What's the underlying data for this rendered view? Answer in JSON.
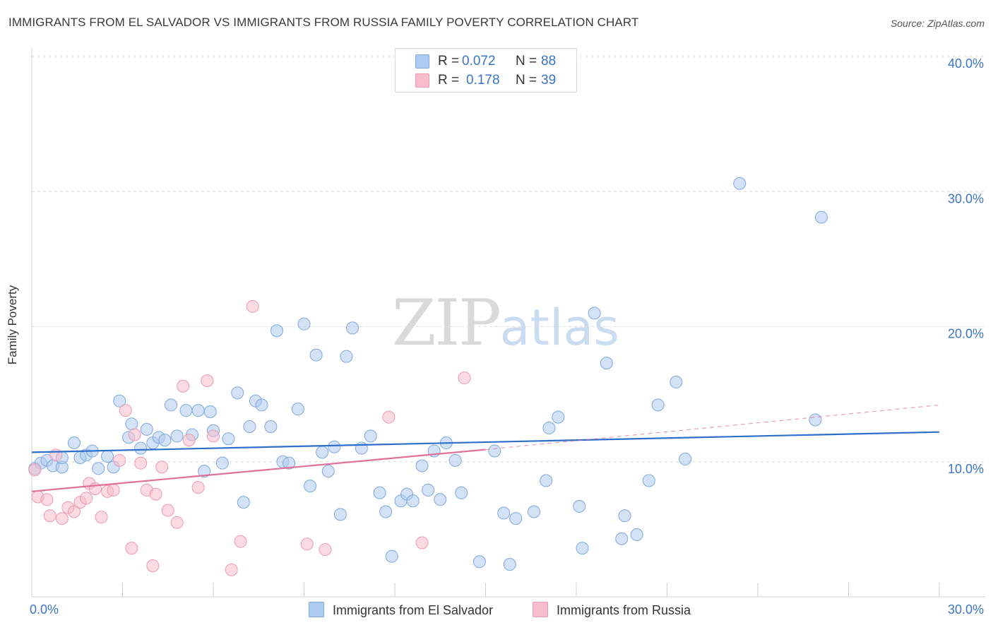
{
  "title": "IMMIGRANTS FROM EL SALVADOR VS IMMIGRANTS FROM RUSSIA FAMILY POVERTY CORRELATION CHART",
  "source": "Source: ZipAtlas.com",
  "watermark": {
    "zip": "ZIP",
    "atlas": "atlas"
  },
  "colors": {
    "blue_fill": "#aecbf0",
    "blue_stroke": "#7ea8dc",
    "blue_line": "#2e6fc9",
    "pink_fill": "#f7bccd",
    "pink_stroke": "#ec9ab4",
    "pink_line": "#e0709a",
    "axis_label": "#3a75c4",
    "grid": "#dcdcdc"
  },
  "legend_top": [
    {
      "r_label": "R =",
      "r_value": "0.072",
      "n_label": "N =",
      "n_value": "88"
    },
    {
      "r_label": "R =",
      "r_value": "0.178",
      "n_label": "N =",
      "n_value": "39"
    }
  ],
  "legend_bottom": [
    {
      "label": "Immigrants from El Salvador"
    },
    {
      "label": "Immigrants from Russia"
    }
  ],
  "chart_data": {
    "type": "scatter",
    "xlabel": "",
    "ylabel": "Family Poverty",
    "xlim": [
      0,
      30
    ],
    "ylim": [
      0,
      40
    ],
    "x_tick_labels": [
      "0.0%",
      "30.0%"
    ],
    "y_tick_labels": [
      "10.0%",
      "20.0%",
      "30.0%",
      "40.0%"
    ],
    "y_ticks": [
      10,
      20,
      30,
      40
    ],
    "grid": true,
    "legend_placement": "top-center",
    "series": [
      {
        "name": "Immigrants from El Salvador",
        "r": 0.072,
        "n": 88,
        "trend": {
          "x": [
            0,
            30
          ],
          "y": [
            10.7,
            12.2
          ],
          "style": "solid"
        },
        "points": [
          [
            0.1,
            9.5
          ],
          [
            0.3,
            9.9
          ],
          [
            0.5,
            10.1
          ],
          [
            0.7,
            9.7
          ],
          [
            1.0,
            9.6
          ],
          [
            1.0,
            10.3
          ],
          [
            1.4,
            11.4
          ],
          [
            1.6,
            10.3
          ],
          [
            1.8,
            10.5
          ],
          [
            2.0,
            10.8
          ],
          [
            2.2,
            9.5
          ],
          [
            2.5,
            10.4
          ],
          [
            2.7,
            9.6
          ],
          [
            2.9,
            14.5
          ],
          [
            3.2,
            11.8
          ],
          [
            3.3,
            12.8
          ],
          [
            3.6,
            11.0
          ],
          [
            3.8,
            12.4
          ],
          [
            4.0,
            11.4
          ],
          [
            4.2,
            11.8
          ],
          [
            4.4,
            11.6
          ],
          [
            4.6,
            14.2
          ],
          [
            4.8,
            11.9
          ],
          [
            5.1,
            13.8
          ],
          [
            5.3,
            12.0
          ],
          [
            5.5,
            13.8
          ],
          [
            5.7,
            9.3
          ],
          [
            5.9,
            13.7
          ],
          [
            6.0,
            12.3
          ],
          [
            6.3,
            9.9
          ],
          [
            6.5,
            11.7
          ],
          [
            6.8,
            15.1
          ],
          [
            7.0,
            7.0
          ],
          [
            7.2,
            12.6
          ],
          [
            7.4,
            14.5
          ],
          [
            7.6,
            14.2
          ],
          [
            7.9,
            12.6
          ],
          [
            8.1,
            19.7
          ],
          [
            8.3,
            10.0
          ],
          [
            8.5,
            9.9
          ],
          [
            8.8,
            13.9
          ],
          [
            9.0,
            20.2
          ],
          [
            9.2,
            8.2
          ],
          [
            9.4,
            17.9
          ],
          [
            9.6,
            10.7
          ],
          [
            9.8,
            9.3
          ],
          [
            10.0,
            11.1
          ],
          [
            10.2,
            6.1
          ],
          [
            10.4,
            17.8
          ],
          [
            10.6,
            19.9
          ],
          [
            10.9,
            11.0
          ],
          [
            11.2,
            11.9
          ],
          [
            11.5,
            7.7
          ],
          [
            11.7,
            6.3
          ],
          [
            11.9,
            3.0
          ],
          [
            12.2,
            7.1
          ],
          [
            12.4,
            7.6
          ],
          [
            12.6,
            7.1
          ],
          [
            12.9,
            9.7
          ],
          [
            13.1,
            7.9
          ],
          [
            13.3,
            10.8
          ],
          [
            13.5,
            7.2
          ],
          [
            13.7,
            11.4
          ],
          [
            14.0,
            10.1
          ],
          [
            14.2,
            7.7
          ],
          [
            14.8,
            2.6
          ],
          [
            15.3,
            10.8
          ],
          [
            15.6,
            6.2
          ],
          [
            15.8,
            2.4
          ],
          [
            16.0,
            5.8
          ],
          [
            16.6,
            6.3
          ],
          [
            17.0,
            8.6
          ],
          [
            17.1,
            12.5
          ],
          [
            17.4,
            13.3
          ],
          [
            18.1,
            6.7
          ],
          [
            18.2,
            3.6
          ],
          [
            18.6,
            21.0
          ],
          [
            19.0,
            17.3
          ],
          [
            19.6,
            6.0
          ],
          [
            19.5,
            4.3
          ],
          [
            20.0,
            4.6
          ],
          [
            20.4,
            8.6
          ],
          [
            20.7,
            14.2
          ],
          [
            21.3,
            15.9
          ],
          [
            21.6,
            10.2
          ],
          [
            23.4,
            30.6
          ],
          [
            25.9,
            13.1
          ],
          [
            26.1,
            28.1
          ]
        ]
      },
      {
        "name": "Immigrants from Russia",
        "r": 0.178,
        "n": 39,
        "trend": {
          "x": [
            0,
            15
          ],
          "y": [
            7.8,
            10.9
          ],
          "style": "solid",
          "extension": {
            "x": [
              15,
              30
            ],
            "y": [
              10.9,
              14.2
            ],
            "style": "dashed"
          }
        },
        "points": [
          [
            0.1,
            9.4
          ],
          [
            0.2,
            7.4
          ],
          [
            0.5,
            7.2
          ],
          [
            0.6,
            6.0
          ],
          [
            0.8,
            10.5
          ],
          [
            1.0,
            5.8
          ],
          [
            1.2,
            6.6
          ],
          [
            1.4,
            6.3
          ],
          [
            1.6,
            7.0
          ],
          [
            1.8,
            7.3
          ],
          [
            1.9,
            8.4
          ],
          [
            2.1,
            8.0
          ],
          [
            2.3,
            5.9
          ],
          [
            2.5,
            7.8
          ],
          [
            2.7,
            7.9
          ],
          [
            2.9,
            10.1
          ],
          [
            3.1,
            13.8
          ],
          [
            3.3,
            3.6
          ],
          [
            3.4,
            12.0
          ],
          [
            3.6,
            9.9
          ],
          [
            3.8,
            7.9
          ],
          [
            4.0,
            2.3
          ],
          [
            4.1,
            7.6
          ],
          [
            4.3,
            9.6
          ],
          [
            4.5,
            6.4
          ],
          [
            4.8,
            5.5
          ],
          [
            5.0,
            15.6
          ],
          [
            5.2,
            11.6
          ],
          [
            5.5,
            8.1
          ],
          [
            5.8,
            16.0
          ],
          [
            6.0,
            11.9
          ],
          [
            6.6,
            2.0
          ],
          [
            6.9,
            4.1
          ],
          [
            7.3,
            21.5
          ],
          [
            9.1,
            3.9
          ],
          [
            9.7,
            3.5
          ],
          [
            11.8,
            13.3
          ],
          [
            12.9,
            4.0
          ],
          [
            14.3,
            16.2
          ]
        ]
      }
    ]
  }
}
